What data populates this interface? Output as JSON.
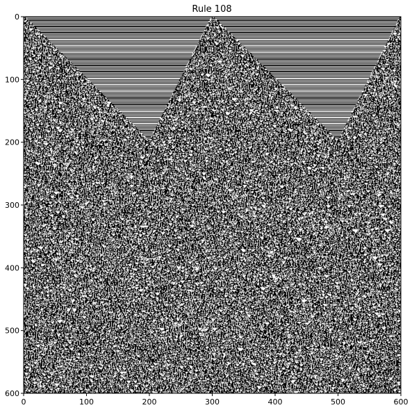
{
  "chart_data": {
    "type": "heatmap",
    "title": "Rule 108",
    "xlabel": "",
    "ylabel": "",
    "xlim": [
      0,
      600
    ],
    "ylim": [
      600,
      0
    ],
    "x_ticks": [
      0,
      100,
      200,
      300,
      400,
      500,
      600
    ],
    "y_ticks": [
      0,
      100,
      200,
      300,
      400,
      500,
      600
    ],
    "grid": false,
    "colormap": [
      "#ffffff",
      "#000000"
    ],
    "width_cells": 600,
    "height_cells": 600,
    "features": {
      "wedge_apexes_x": [
        0,
        300,
        600
      ],
      "wedge_floor_y": 200,
      "wedge_floor_x": [
        200,
        500
      ]
    }
  }
}
